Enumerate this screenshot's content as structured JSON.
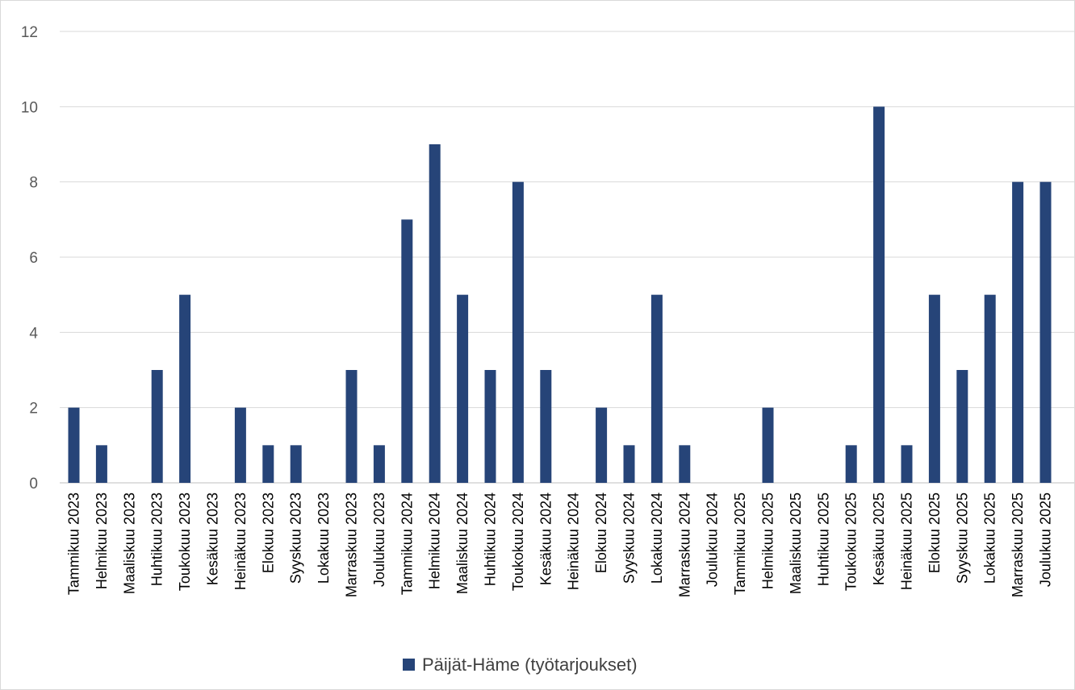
{
  "chart_data": {
    "type": "bar",
    "title": "",
    "xlabel": "",
    "ylabel": "",
    "ylim": [
      0,
      12
    ],
    "yticks": [
      0,
      2,
      4,
      6,
      8,
      10,
      12
    ],
    "grid": true,
    "legend_position": "bottom",
    "colors": {
      "bar": "#264478",
      "grid": "#d9d9d9",
      "tick_text": "#595959"
    },
    "categories": [
      "Tammikuu 2023",
      "Helmikuu 2023",
      "Maaliskuu 2023",
      "Huhtikuu 2023",
      "Toukokuu 2023",
      "Kesäkuu 2023",
      "Heinäkuu 2023",
      "Elokuu 2023",
      "Syyskuu 2023",
      "Lokakuu 2023",
      "Marraskuu 2023",
      "Joulukuu 2023",
      "Tammikuu 2024",
      "Helmikuu 2024",
      "Maaliskuu 2024",
      "Huhtikuu 2024",
      "Toukokuu 2024",
      "Kesäkuu 2024",
      "Heinäkuu 2024",
      "Elokuu 2024",
      "Syyskuu 2024",
      "Lokakuu 2024",
      "Marraskuu 2024",
      "Joulukuu 2024",
      "Tammikuu 2025",
      "Helmikuu 2025",
      "Maaliskuu 2025",
      "Huhtikuu 2025",
      "Toukokuu 2025",
      "Kesäkuu 2025",
      "Heinäkuu 2025",
      "Elokuu 2025",
      "Syyskuu 2025",
      "Lokakuu 2025",
      "Marraskuu 2025",
      "Joulukuu 2025"
    ],
    "series": [
      {
        "name": "Päijät-Häme (työtarjoukset)",
        "values": [
          2,
          1,
          0,
          3,
          5,
          0,
          2,
          1,
          1,
          0,
          3,
          1,
          7,
          9,
          5,
          3,
          8,
          3,
          0,
          2,
          1,
          5,
          1,
          0,
          0,
          2,
          0,
          0,
          1,
          10,
          1,
          5,
          3,
          5,
          8,
          8
        ]
      }
    ]
  }
}
